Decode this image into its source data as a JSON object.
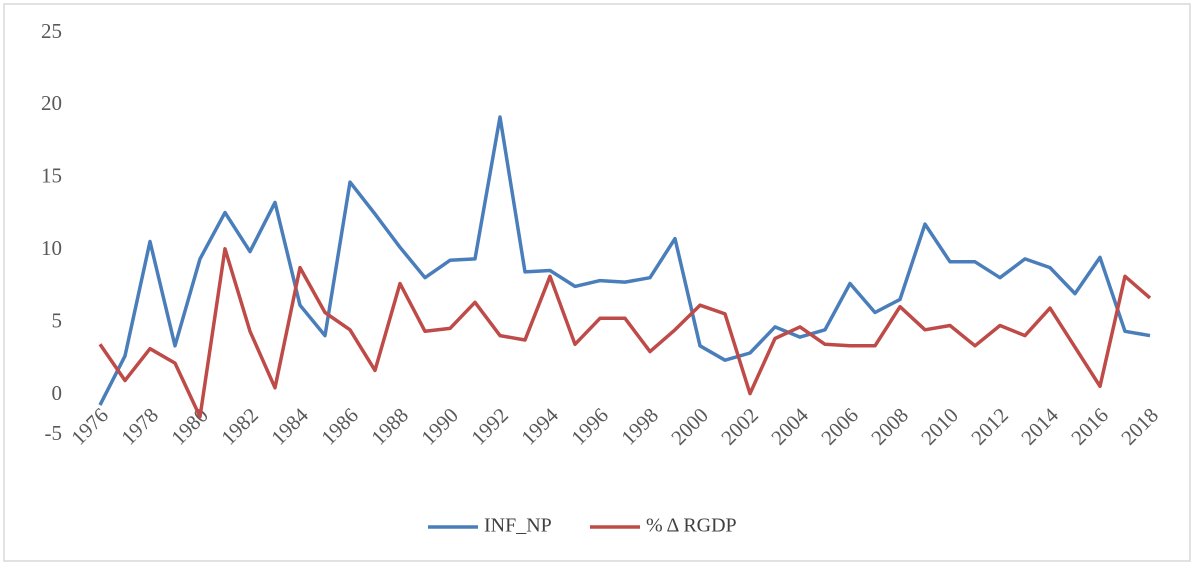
{
  "chart_data": {
    "type": "line",
    "categories": [
      "1976",
      null,
      "1978",
      null,
      "1980",
      null,
      "1982",
      null,
      "1984",
      null,
      "1986",
      null,
      "1988",
      null,
      "1990",
      null,
      "1992",
      null,
      "1994",
      null,
      "1996",
      null,
      "1998",
      null,
      "2000",
      null,
      "2002",
      null,
      "2004",
      null,
      "2006",
      null,
      "2008",
      null,
      "2010",
      null,
      "2012",
      null,
      "2014",
      null,
      "2016",
      null,
      "2018"
    ],
    "series": [
      {
        "name": "INF_NP",
        "color": "#4a7ebb",
        "values": [
          -0.7,
          2.7,
          10.6,
          3.4,
          9.4,
          12.6,
          9.9,
          13.3,
          6.2,
          4.1,
          14.7,
          12.5,
          10.2,
          8.1,
          9.3,
          9.4,
          19.2,
          8.5,
          8.6,
          7.5,
          7.9,
          7.8,
          8.1,
          10.8,
          3.4,
          2.4,
          2.9,
          4.7,
          4.0,
          4.5,
          7.7,
          5.7,
          6.6,
          11.8,
          9.2,
          9.2,
          8.1,
          9.4,
          8.8,
          7.0,
          9.5,
          4.4,
          4.1
        ]
      },
      {
        "name": "% Δ RGDP",
        "color": "#be4b48",
        "values": [
          3.5,
          1.0,
          3.2,
          2.2,
          -1.5,
          10.1,
          4.4,
          0.5,
          8.8,
          5.7,
          4.5,
          1.7,
          7.7,
          4.4,
          4.6,
          6.4,
          4.1,
          3.8,
          8.2,
          3.5,
          5.3,
          5.3,
          3.0,
          4.5,
          6.2,
          5.6,
          0.1,
          3.9,
          4.7,
          3.5,
          3.4,
          3.4,
          6.1,
          4.5,
          4.8,
          3.4,
          4.8,
          4.1,
          6.0,
          3.3,
          0.6,
          8.2,
          6.7
        ]
      }
    ],
    "ylim": [
      -5,
      25
    ],
    "yticks": [
      -5,
      0,
      5,
      10,
      15,
      20,
      25
    ],
    "legend": "bottom"
  }
}
